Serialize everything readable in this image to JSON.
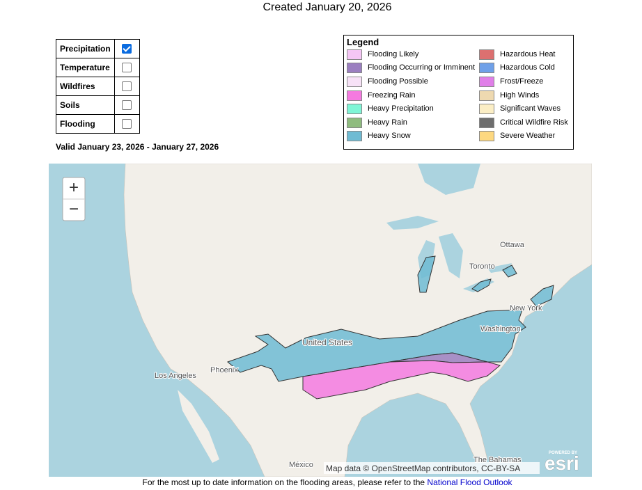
{
  "header": {
    "title": "Created January 20, 2026"
  },
  "layers": {
    "rows": [
      {
        "label": "Precipitation",
        "checked": true
      },
      {
        "label": "Temperature",
        "checked": false
      },
      {
        "label": "Wildfires",
        "checked": false
      },
      {
        "label": "Soils",
        "checked": false
      },
      {
        "label": "Flooding",
        "checked": false
      }
    ]
  },
  "valid": "Valid January 23, 2026 - January 27, 2026",
  "legend": {
    "title": "Legend",
    "items": [
      {
        "label": "Flooding Likely",
        "color": "#f5c6f5"
      },
      {
        "label": "Flooding Occurring or Imminent",
        "color": "#9b7fc0"
      },
      {
        "label": "Flooding Possible",
        "color": "#f7e2f7"
      },
      {
        "label": "Freezing Rain",
        "color": "#f57ae0"
      },
      {
        "label": "Heavy Precipitation",
        "color": "#7ff5d6"
      },
      {
        "label": "Heavy Rain",
        "color": "#8fbc7f"
      },
      {
        "label": "Heavy Snow",
        "color": "#6fbbd3"
      },
      {
        "label": "Hazardous Heat",
        "color": "#dc7070"
      },
      {
        "label": "Hazardous Cold",
        "color": "#6fa0e8"
      },
      {
        "label": "Frost/Freeze",
        "color": "#e07fe8"
      },
      {
        "label": "High Winds",
        "color": "#eed9b0"
      },
      {
        "label": "Significant Waves",
        "color": "#fbeec5"
      },
      {
        "label": "Critical Wildfire Risk",
        "color": "#6e6e6e"
      },
      {
        "label": "Severe Weather",
        "color": "#fdd880"
      }
    ]
  },
  "map": {
    "zoom_in": "+",
    "zoom_out": "−",
    "labels": [
      "Ottawa",
      "Toronto",
      "New York",
      "Washington",
      "United States",
      "Phoenix",
      "Los Angeles",
      "México",
      "The Bahamas"
    ],
    "attribution": "Map data © OpenStreetMap contributors, CC-BY-SA",
    "logo_top": "POWERED BY",
    "logo": "esri"
  },
  "footer": {
    "text": "For the most up to date information on the flooding areas, please refer to the",
    "link": "National Flood Outlook"
  }
}
